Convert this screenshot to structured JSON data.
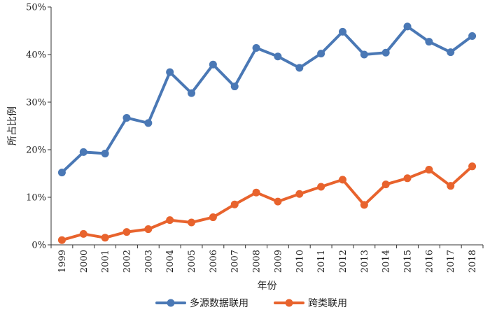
{
  "chart_data": {
    "type": "line",
    "title": "",
    "xlabel": "年份",
    "ylabel": "所占比例",
    "x": [
      "1999",
      "2000",
      "2001",
      "2002",
      "2003",
      "2004",
      "2005",
      "2006",
      "2007",
      "2008",
      "2009",
      "2010",
      "2011",
      "2012",
      "2013",
      "2014",
      "2015",
      "2016",
      "2017",
      "2018"
    ],
    "ylim": [
      0,
      50
    ],
    "yticks": [
      "0%",
      "10%",
      "20%",
      "30%",
      "40%",
      "50%"
    ],
    "grid": false,
    "legend_position": "bottom",
    "series": [
      {
        "name": "多源数据联用",
        "color": "#4a78b5",
        "values": [
          15.2,
          19.5,
          19.2,
          26.7,
          25.6,
          36.3,
          31.9,
          37.9,
          33.3,
          41.4,
          39.6,
          37.2,
          40.2,
          44.8,
          40.0,
          40.4,
          45.9,
          42.7,
          40.5,
          43.9
        ]
      },
      {
        "name": "跨类联用",
        "color": "#e8632d",
        "values": [
          1.0,
          2.3,
          1.5,
          2.7,
          3.3,
          5.2,
          4.7,
          5.8,
          8.5,
          11.0,
          9.1,
          10.7,
          12.2,
          13.7,
          8.4,
          12.7,
          14.0,
          15.8,
          12.4,
          16.5
        ]
      }
    ]
  }
}
